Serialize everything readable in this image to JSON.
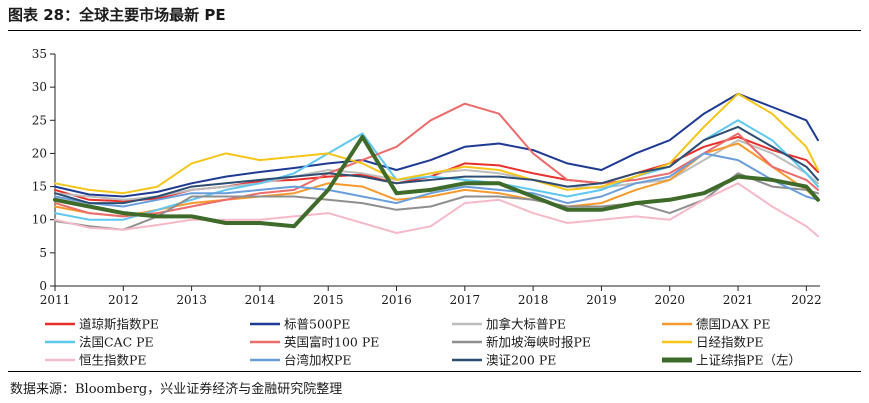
{
  "figure": {
    "title": "图表 28：全球主要市场最新 PE",
    "source": "数据来源：Bloomberg，兴业证券经济与金融研究院整理"
  },
  "chart_data": {
    "type": "line",
    "title": "全球主要市场最新 PE",
    "xlabel": "",
    "ylabel": "",
    "x": [
      2011.0,
      2011.5,
      2012.0,
      2012.5,
      2013.0,
      2013.5,
      2014.0,
      2014.5,
      2015.0,
      2015.5,
      2016.0,
      2016.5,
      2017.0,
      2017.5,
      2018.0,
      2018.5,
      2019.0,
      2019.5,
      2020.0,
      2020.5,
      2021.0,
      2021.5,
      2022.0,
      2022.17
    ],
    "xticks": [
      "2011",
      "2012",
      "2013",
      "2014",
      "2015",
      "2016",
      "2017",
      "2018",
      "2019",
      "2020",
      "2021",
      "2022"
    ],
    "xlim": [
      2011.0,
      2022.2
    ],
    "yticks": [
      "0",
      "5",
      "10",
      "15",
      "20",
      "25",
      "30",
      "35"
    ],
    "ylim": [
      0,
      35
    ],
    "grid": false,
    "legend_position": "bottom",
    "series": [
      {
        "name": "道琼斯指数PE",
        "color": "#e8302a",
        "width": 2,
        "values": [
          14.5,
          13.0,
          12.8,
          13.2,
          14.5,
          15.0,
          15.8,
          16.0,
          16.5,
          16.8,
          15.5,
          16.5,
          18.5,
          18.2,
          17.0,
          16.0,
          15.5,
          17.0,
          18.5,
          21.0,
          22.5,
          20.5,
          19.0,
          17.2
        ]
      },
      {
        "name": "标普500PE",
        "color": "#1f3a93",
        "width": 2,
        "values": [
          15.0,
          13.8,
          13.5,
          14.2,
          15.5,
          16.5,
          17.2,
          17.8,
          18.5,
          19.0,
          17.5,
          19.0,
          21.0,
          21.5,
          20.5,
          18.5,
          17.5,
          20.0,
          22.0,
          26.0,
          29.0,
          27.0,
          25.0,
          22.0
        ]
      },
      {
        "name": "加拿大标普PE",
        "color": "#bdbdbd",
        "width": 2,
        "values": [
          14.0,
          13.5,
          13.0,
          13.5,
          14.5,
          15.0,
          15.5,
          16.5,
          17.5,
          17.0,
          16.0,
          17.0,
          17.5,
          17.0,
          16.0,
          15.0,
          14.8,
          15.5,
          16.0,
          19.0,
          22.0,
          20.0,
          17.0,
          15.5
        ]
      },
      {
        "name": "德国DAX PE",
        "color": "#f79a2e",
        "width": 2,
        "values": [
          12.0,
          11.0,
          10.5,
          11.5,
          12.5,
          13.0,
          13.5,
          14.0,
          15.5,
          15.0,
          13.0,
          13.5,
          14.5,
          14.0,
          13.0,
          12.0,
          12.5,
          14.5,
          16.0,
          20.0,
          21.5,
          18.0,
          14.5,
          13.0
        ]
      },
      {
        "name": "法国CAC PE",
        "color": "#5ec8f0",
        "width": 2,
        "values": [
          11.0,
          10.0,
          10.0,
          11.5,
          13.0,
          14.5,
          15.5,
          17.0,
          20.0,
          23.0,
          16.0,
          16.5,
          16.0,
          15.5,
          14.5,
          13.5,
          14.5,
          16.5,
          18.0,
          22.0,
          25.0,
          22.0,
          17.0,
          15.0
        ]
      },
      {
        "name": "英国富时100 PE",
        "color": "#ec6b6b",
        "width": 2,
        "values": [
          12.5,
          11.0,
          10.5,
          11.0,
          12.0,
          13.0,
          14.0,
          14.5,
          17.0,
          19.0,
          21.0,
          25.0,
          27.5,
          26.0,
          20.0,
          16.0,
          15.5,
          16.0,
          17.0,
          20.0,
          23.0,
          18.0,
          16.0,
          14.5
        ]
      },
      {
        "name": "新加坡海峡时报PE",
        "color": "#8f8f8f",
        "width": 2,
        "values": [
          9.8,
          9.0,
          8.5,
          10.5,
          13.5,
          13.5,
          13.5,
          13.5,
          13.0,
          12.5,
          11.5,
          12.0,
          13.5,
          13.5,
          13.0,
          12.0,
          12.0,
          12.5,
          11.0,
          13.0,
          17.0,
          15.0,
          14.5,
          14.0
        ]
      },
      {
        "name": "日经指数PE",
        "color": "#f5c518",
        "width": 2,
        "values": [
          15.5,
          14.5,
          14.0,
          15.0,
          18.5,
          20.0,
          19.0,
          19.5,
          20.0,
          18.5,
          16.0,
          17.0,
          18.0,
          17.5,
          16.0,
          14.5,
          15.0,
          16.5,
          18.5,
          24.0,
          29.0,
          26.0,
          21.0,
          17.5
        ]
      },
      {
        "name": "恒生指数PE",
        "color": "#f6b9c9",
        "width": 2,
        "values": [
          10.0,
          8.8,
          8.5,
          9.2,
          10.0,
          10.0,
          10.0,
          10.5,
          11.0,
          9.5,
          8.0,
          9.0,
          12.5,
          13.0,
          11.0,
          9.5,
          10.0,
          10.5,
          10.0,
          13.0,
          15.5,
          12.0,
          9.0,
          7.5
        ]
      },
      {
        "name": "台湾加权PE",
        "color": "#6a9edb",
        "width": 2,
        "values": [
          13.5,
          12.5,
          12.0,
          13.0,
          14.0,
          14.0,
          14.5,
          15.0,
          14.5,
          13.5,
          12.5,
          14.0,
          15.0,
          14.5,
          14.0,
          12.5,
          13.5,
          15.5,
          16.5,
          20.0,
          19.0,
          16.0,
          13.5,
          13.0
        ]
      },
      {
        "name": "澳证200 PE",
        "color": "#2e4d73",
        "width": 2,
        "values": [
          14.0,
          12.5,
          12.5,
          13.5,
          15.0,
          15.5,
          16.0,
          16.5,
          17.0,
          16.5,
          15.5,
          16.0,
          16.5,
          16.5,
          16.0,
          15.0,
          15.5,
          17.0,
          18.0,
          22.0,
          24.0,
          21.0,
          18.0,
          16.0
        ]
      },
      {
        "name": "上证综指PE（左）",
        "color": "#3e6b2a",
        "width": 4,
        "values": [
          13.0,
          12.0,
          11.0,
          10.5,
          10.5,
          9.5,
          9.5,
          9.0,
          14.5,
          22.5,
          14.0,
          14.5,
          15.5,
          15.5,
          13.5,
          11.5,
          11.5,
          12.5,
          13.0,
          14.0,
          16.5,
          16.0,
          15.0,
          13.0
        ]
      }
    ]
  }
}
